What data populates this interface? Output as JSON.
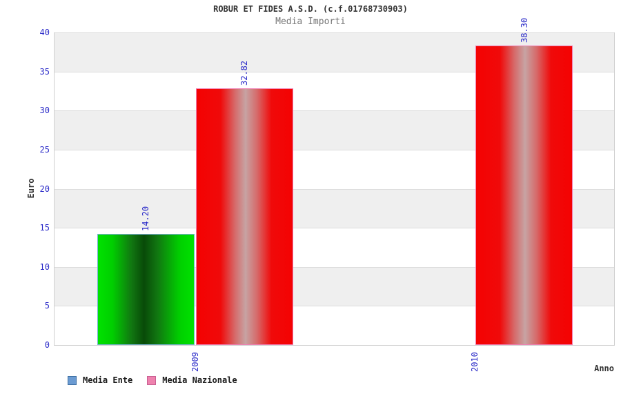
{
  "chart_data": {
    "type": "bar",
    "title": "ROBUR ET FIDES A.S.D. (c.f.01768730903)",
    "subtitle": "Media Importi",
    "xlabel": "Anno",
    "ylabel": "Euro",
    "ylim": [
      0,
      40
    ],
    "ytick_step": 5,
    "yticks": [
      40,
      35,
      30,
      25,
      20,
      15,
      10,
      5,
      0
    ],
    "grid": "horizontal-bands-alternating",
    "legend_position": "bottom-left",
    "categories": [
      "2009",
      "2010"
    ],
    "series": [
      {
        "name": "Media Ente",
        "color": "green",
        "values": [
          14.2,
          null
        ],
        "value_labels": [
          "14.20",
          null
        ]
      },
      {
        "name": "Media Nazionale",
        "color": "red",
        "values": [
          32.82,
          38.3
        ],
        "value_labels": [
          "32.82",
          "38.30"
        ]
      }
    ],
    "legend": [
      {
        "label": "Media Ente",
        "swatch_fill": "#6b9bd2",
        "swatch_border": "#3d6fa3"
      },
      {
        "label": "Media Nazionale",
        "swatch_fill": "#ee82ae",
        "swatch_border": "#c95f92"
      }
    ],
    "colors": {
      "axis_text": "#2a2ac8",
      "value_label_text": "#2a2ac8",
      "title_text": "#333333",
      "subtitle_text": "#757575",
      "band_gray": "#efefef",
      "band_white": "#ffffff",
      "grid_line": "#dcdcdc",
      "green_bar_border": "#7ab0d4",
      "red_bar_border": "#f07fb4"
    }
  }
}
